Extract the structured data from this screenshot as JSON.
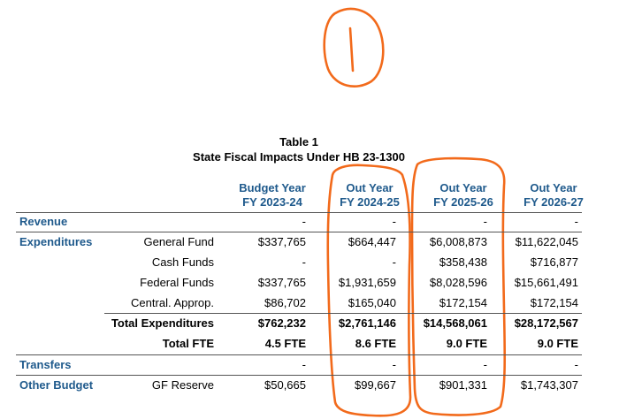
{
  "table": {
    "title": "Table 1",
    "subtitle": "State Fiscal Impacts Under HB 23-1300",
    "columns": [
      {
        "line1": "Budget Year",
        "line2": "FY 2023-24"
      },
      {
        "line1": "Out Year",
        "line2": "FY 2024-25"
      },
      {
        "line1": "Out Year",
        "line2": "FY 2025-26"
      },
      {
        "line1": "Out Year",
        "line2": "FY 2026-27"
      }
    ],
    "rows": {
      "revenue": {
        "label": "Revenue",
        "values": [
          "-",
          "-",
          "-",
          "-"
        ]
      },
      "general_fund": {
        "section": "Expenditures",
        "label": "General Fund",
        "values": [
          "$337,765",
          "$664,447",
          "$6,008,873",
          "$11,622,045"
        ]
      },
      "cash_funds": {
        "label": "Cash Funds",
        "values": [
          "-",
          "-",
          "$358,438",
          "$716,877"
        ]
      },
      "federal_funds": {
        "label": "Federal Funds",
        "values": [
          "$337,765",
          "$1,931,659",
          "$8,028,596",
          "$15,661,491"
        ]
      },
      "central_approp": {
        "label": "Central. Approp.",
        "values": [
          "$86,702",
          "$165,040",
          "$172,154",
          "$172,154"
        ]
      },
      "total_expenditures": {
        "label": "Total Expenditures",
        "values": [
          "$762,232",
          "$2,761,146",
          "$14,568,061",
          "$28,172,567"
        ]
      },
      "total_fte": {
        "label": "Total FTE",
        "values": [
          "4.5 FTE",
          "8.6 FTE",
          "9.0 FTE",
          "9.0 FTE"
        ]
      },
      "transfers": {
        "label": "Transfers",
        "values": [
          "-",
          "-",
          "-",
          "-"
        ]
      },
      "gf_reserve": {
        "section": "Other Budget",
        "label": "GF Reserve",
        "values": [
          "$50,665",
          "$99,667",
          "$901,331",
          "$1,743,307"
        ]
      }
    }
  },
  "annotation": {
    "number_label": "1",
    "ink_color": "#f26a1b"
  }
}
